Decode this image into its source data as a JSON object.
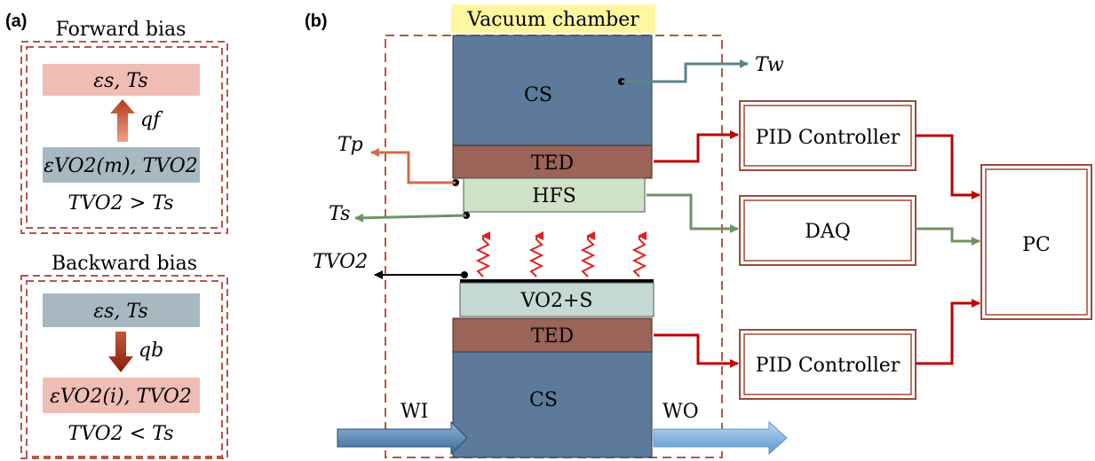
{
  "panel_a": {
    "label": "(a)",
    "forward": {
      "title": "Forward bias",
      "top_box": "εs, Ts",
      "flux": "qf",
      "bottom_box": "εVO2(m), TVO2",
      "condition": "TVO2 > Ts"
    },
    "backward": {
      "title": "Backward bias",
      "top_box": "εs, Ts",
      "flux": "qb",
      "bottom_box": "εVO2(i), TVO2",
      "condition": "TVO2 < Ts"
    }
  },
  "panel_b": {
    "label": "(b)",
    "chamber_label": "Vacuum chamber",
    "stack": {
      "cs_top": "CS",
      "ted_top": "TED",
      "hfs": "HFS",
      "sample": "VO2+S",
      "ted_bottom": "TED",
      "cs_bottom": "CS"
    },
    "thermocouples": {
      "tw": "Tw",
      "tp": "Tp",
      "ts": "Ts",
      "tvo2": "TVO2"
    },
    "water": {
      "inlet": "WI",
      "outlet": "WO"
    },
    "instruments": {
      "pid_top": "PID Controller",
      "daq": "DAQ",
      "pid_bottom": "PID Controller",
      "pc": "PC"
    }
  },
  "colors": {
    "chamber_dash": "#b5574a",
    "cs_block": "#5d7a9a",
    "ted": "#9a6459",
    "hfs": "#cfe1c6",
    "sample": "#c4d8d4",
    "pink_box": "#efbdb4",
    "blue_box": "#a7b8c0",
    "red_wire": "#c00000",
    "green_wire": "#6d9362",
    "teal_wire": "#5b8587",
    "orange_wire": "#d36a4a",
    "instrument_border": "#9c4a3a",
    "chamber_label_bg": "#fef7a2"
  }
}
